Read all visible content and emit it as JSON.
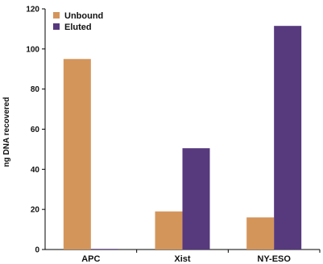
{
  "chart_data": {
    "type": "bar",
    "title": "",
    "xlabel": "",
    "ylabel": "ng DNA recovered",
    "ylim": [
      0,
      120
    ],
    "yticks": [
      0,
      20,
      40,
      60,
      80,
      100,
      120
    ],
    "grid": false,
    "legend_position": "top-left",
    "categories": [
      "APC",
      "Xist",
      "NY-ESO"
    ],
    "series": [
      {
        "name": "Unbound",
        "color": "#D4955B",
        "values": [
          95,
          19,
          16
        ]
      },
      {
        "name": "Eluted",
        "color": "#57397E",
        "values": [
          0.3,
          50.5,
          111.5
        ]
      }
    ]
  }
}
